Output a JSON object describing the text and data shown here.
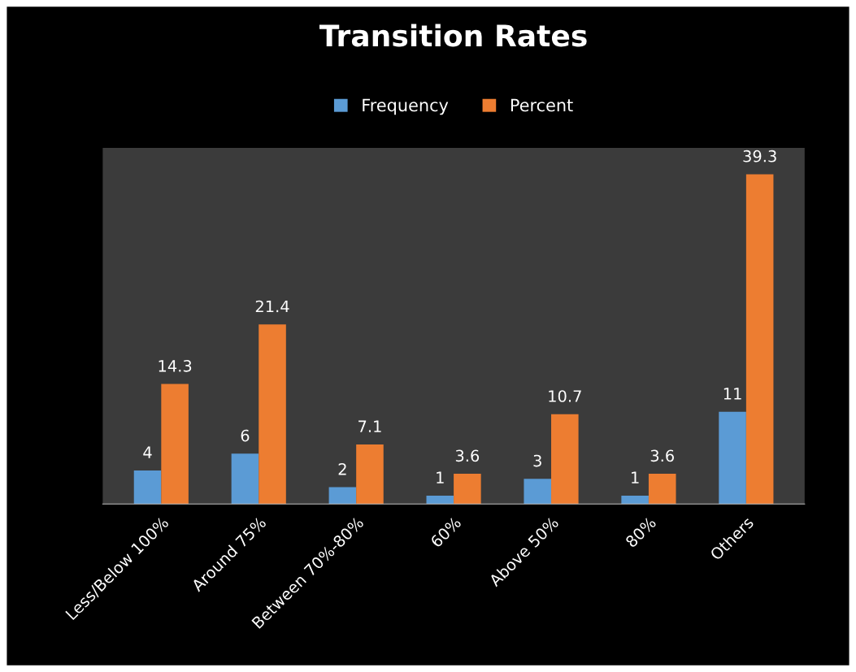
{
  "chart_data": {
    "type": "bar",
    "title": "Transition Rates",
    "categories": [
      "Less/Below 100%",
      "Around 75%",
      "Between 70%-80%",
      "60%",
      "Above 50%",
      "80%",
      "Others"
    ],
    "series": [
      {
        "name": "Frequency",
        "color": "#5b9bd5",
        "values": [
          4,
          6,
          2,
          1,
          3,
          1,
          11
        ]
      },
      {
        "name": "Percent",
        "color": "#ed7d31",
        "values": [
          14.3,
          21.4,
          7.1,
          3.6,
          10.7,
          3.6,
          39.3
        ]
      }
    ],
    "data_labels": true,
    "legend": "top"
  }
}
